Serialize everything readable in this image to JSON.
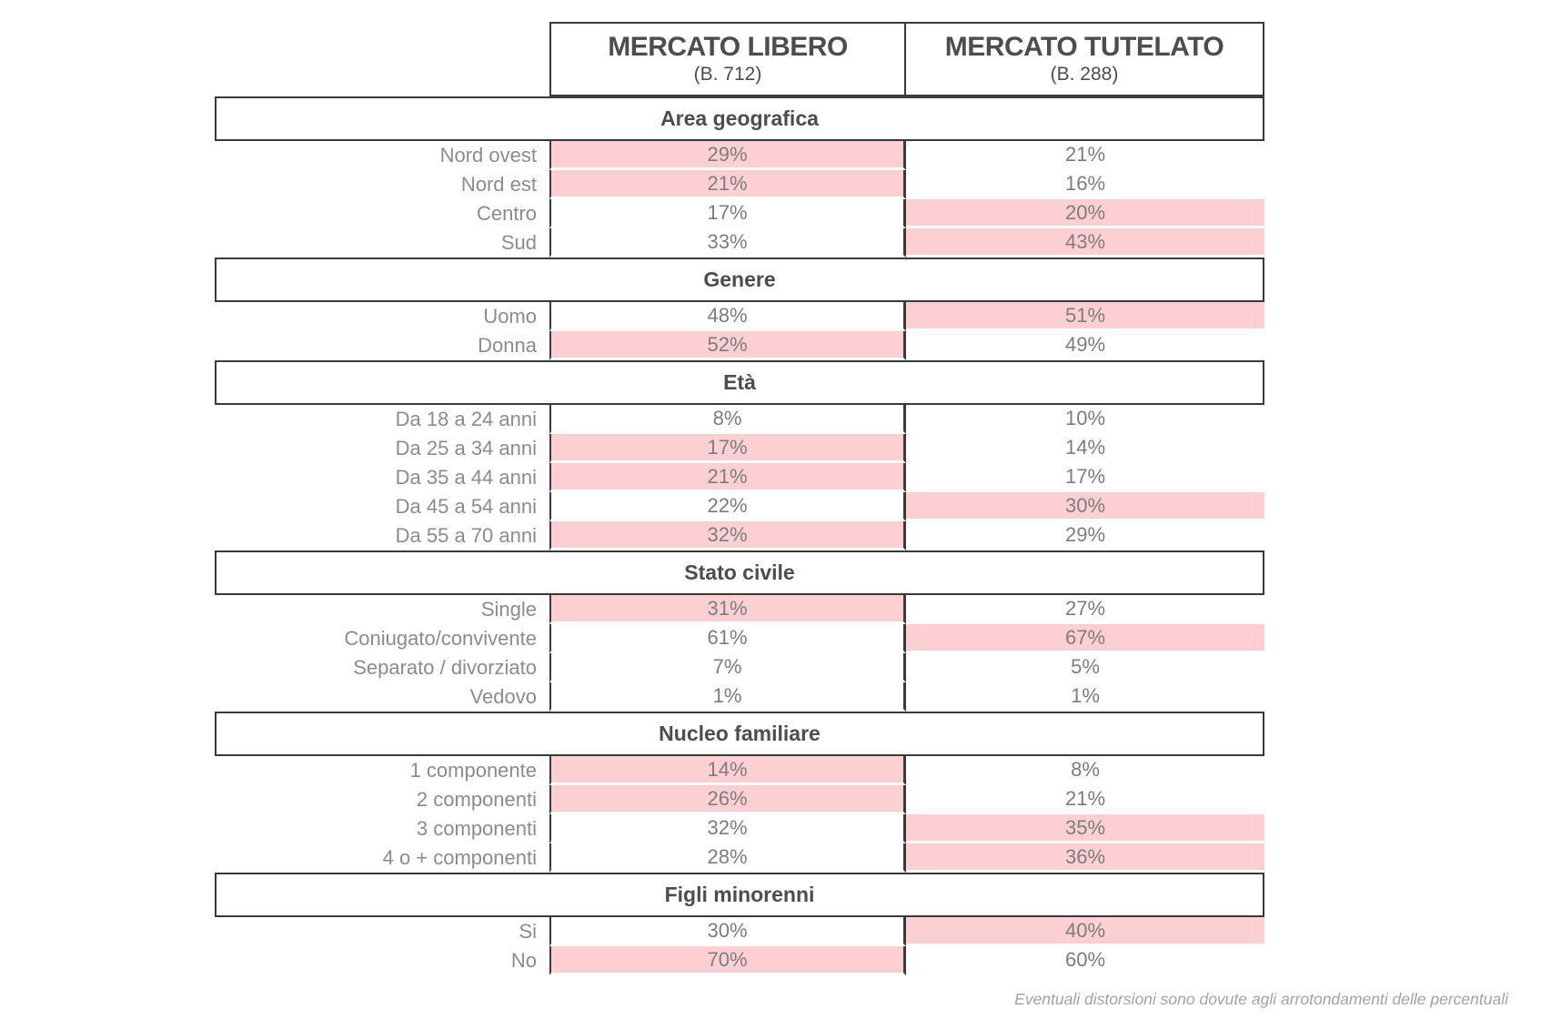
{
  "columns": [
    {
      "key": "libero",
      "title": "MERCATO LIBERO",
      "base": "(B. 712)"
    },
    {
      "key": "tutelato",
      "title": "MERCATO TUTELATO",
      "base": "(B. 288)"
    }
  ],
  "sections": [
    {
      "title": "Area geografica",
      "rows": [
        {
          "label": "Nord ovest",
          "libero": "29%",
          "tutelato": "21%",
          "highlight": "libero"
        },
        {
          "label": "Nord est",
          "libero": "21%",
          "tutelato": "16%",
          "highlight": "libero"
        },
        {
          "label": "Centro",
          "libero": "17%",
          "tutelato": "20%",
          "highlight": "tutelato"
        },
        {
          "label": "Sud",
          "libero": "33%",
          "tutelato": "43%",
          "highlight": "tutelato"
        }
      ]
    },
    {
      "title": "Genere",
      "rows": [
        {
          "label": "Uomo",
          "libero": "48%",
          "tutelato": "51%",
          "highlight": "tutelato"
        },
        {
          "label": "Donna",
          "libero": "52%",
          "tutelato": "49%",
          "highlight": "libero"
        }
      ]
    },
    {
      "title": "Età",
      "rows": [
        {
          "label": "Da 18 a 24 anni",
          "libero": "8%",
          "tutelato": "10%",
          "highlight": null
        },
        {
          "label": "Da 25 a 34 anni",
          "libero": "17%",
          "tutelato": "14%",
          "highlight": "libero"
        },
        {
          "label": "Da 35 a 44 anni",
          "libero": "21%",
          "tutelato": "17%",
          "highlight": "libero"
        },
        {
          "label": "Da 45 a 54 anni",
          "libero": "22%",
          "tutelato": "30%",
          "highlight": "tutelato"
        },
        {
          "label": "Da 55 a 70 anni",
          "libero": "32%",
          "tutelato": "29%",
          "highlight": "libero"
        }
      ]
    },
    {
      "title": "Stato civile",
      "rows": [
        {
          "label": "Single",
          "libero": "31%",
          "tutelato": "27%",
          "highlight": "libero"
        },
        {
          "label": "Coniugato/convivente",
          "libero": "61%",
          "tutelato": "67%",
          "highlight": "tutelato"
        },
        {
          "label": "Separato / divorziato",
          "libero": "7%",
          "tutelato": "5%",
          "highlight": null
        },
        {
          "label": "Vedovo",
          "libero": "1%",
          "tutelato": "1%",
          "highlight": null
        }
      ]
    },
    {
      "title": "Nucleo familiare",
      "rows": [
        {
          "label": "1 componente",
          "libero": "14%",
          "tutelato": "8%",
          "highlight": "libero"
        },
        {
          "label": "2 componenti",
          "libero": "26%",
          "tutelato": "21%",
          "highlight": "libero"
        },
        {
          "label": "3 componenti",
          "libero": "32%",
          "tutelato": "35%",
          "highlight": "tutelato"
        },
        {
          "label": "4 o + componenti",
          "libero": "28%",
          "tutelato": "36%",
          "highlight": "tutelato"
        }
      ]
    },
    {
      "title": "Figli minorenni",
      "rows": [
        {
          "label": "Si",
          "libero": "30%",
          "tutelato": "40%",
          "highlight": "tutelato"
        },
        {
          "label": "No",
          "libero": "70%",
          "tutelato": "60%",
          "highlight": "libero"
        }
      ]
    }
  ],
  "footnote": "Eventuali distorsioni sono dovute agli arrotondamenti delle percentuali",
  "colors": {
    "highlight_pink": "#fcd0d3",
    "border_dark": "#3a3a3a",
    "header_text": "#4d4d4d",
    "label_text": "#8c8c8c",
    "value_text": "#7d7d7d",
    "footnote_text": "#a3a3a3"
  },
  "chart_data": {
    "type": "table",
    "title": "",
    "unit": "%",
    "columns": [
      "MERCATO LIBERO (B. 712)",
      "MERCATO TUTELATO (B. 288)"
    ],
    "column_bases": [
      712,
      288
    ],
    "groups": [
      {
        "name": "Area geografica",
        "categories": [
          "Nord ovest",
          "Nord est",
          "Centro",
          "Sud"
        ],
        "series": [
          {
            "name": "MERCATO LIBERO",
            "values": [
              29,
              21,
              17,
              33
            ]
          },
          {
            "name": "MERCATO TUTELATO",
            "values": [
              21,
              16,
              20,
              43
            ]
          }
        ],
        "highlighted_column_per_row": [
          "MERCATO LIBERO",
          "MERCATO LIBERO",
          "MERCATO TUTELATO",
          "MERCATO TUTELATO"
        ]
      },
      {
        "name": "Genere",
        "categories": [
          "Uomo",
          "Donna"
        ],
        "series": [
          {
            "name": "MERCATO LIBERO",
            "values": [
              48,
              52
            ]
          },
          {
            "name": "MERCATO TUTELATO",
            "values": [
              51,
              49
            ]
          }
        ],
        "highlighted_column_per_row": [
          "MERCATO TUTELATO",
          "MERCATO LIBERO"
        ]
      },
      {
        "name": "Età",
        "categories": [
          "Da 18 a 24 anni",
          "Da 25 a 34 anni",
          "Da 35 a 44 anni",
          "Da 45 a 54 anni",
          "Da 55 a 70 anni"
        ],
        "series": [
          {
            "name": "MERCATO LIBERO",
            "values": [
              8,
              17,
              21,
              22,
              32
            ]
          },
          {
            "name": "MERCATO TUTELATO",
            "values": [
              10,
              14,
              17,
              30,
              29
            ]
          }
        ],
        "highlighted_column_per_row": [
          null,
          "MERCATO LIBERO",
          "MERCATO LIBERO",
          "MERCATO TUTELATO",
          "MERCATO LIBERO"
        ]
      },
      {
        "name": "Stato civile",
        "categories": [
          "Single",
          "Coniugato/convivente",
          "Separato / divorziato",
          "Vedovo"
        ],
        "series": [
          {
            "name": "MERCATO LIBERO",
            "values": [
              31,
              61,
              7,
              1
            ]
          },
          {
            "name": "MERCATO TUTELATO",
            "values": [
              27,
              67,
              5,
              1
            ]
          }
        ],
        "highlighted_column_per_row": [
          "MERCATO LIBERO",
          "MERCATO TUTELATO",
          null,
          null
        ]
      },
      {
        "name": "Nucleo familiare",
        "categories": [
          "1 componente",
          "2 componenti",
          "3 componenti",
          "4 o + componenti"
        ],
        "series": [
          {
            "name": "MERCATO LIBERO",
            "values": [
              14,
              26,
              32,
              28
            ]
          },
          {
            "name": "MERCATO TUTELATO",
            "values": [
              8,
              21,
              35,
              36
            ]
          }
        ],
        "highlighted_column_per_row": [
          "MERCATO LIBERO",
          "MERCATO LIBERO",
          "MERCATO TUTELATO",
          "MERCATO TUTELATO"
        ]
      },
      {
        "name": "Figli minorenni",
        "categories": [
          "Si",
          "No"
        ],
        "series": [
          {
            "name": "MERCATO LIBERO",
            "values": [
              30,
              70
            ]
          },
          {
            "name": "MERCATO TUTELATO",
            "values": [
              40,
              60
            ]
          }
        ],
        "highlighted_column_per_row": [
          "MERCATO TUTELATO",
          "MERCATO LIBERO"
        ]
      }
    ],
    "footnote": "Eventuali distorsioni sono dovute agli arrotondamenti delle percentuali"
  }
}
